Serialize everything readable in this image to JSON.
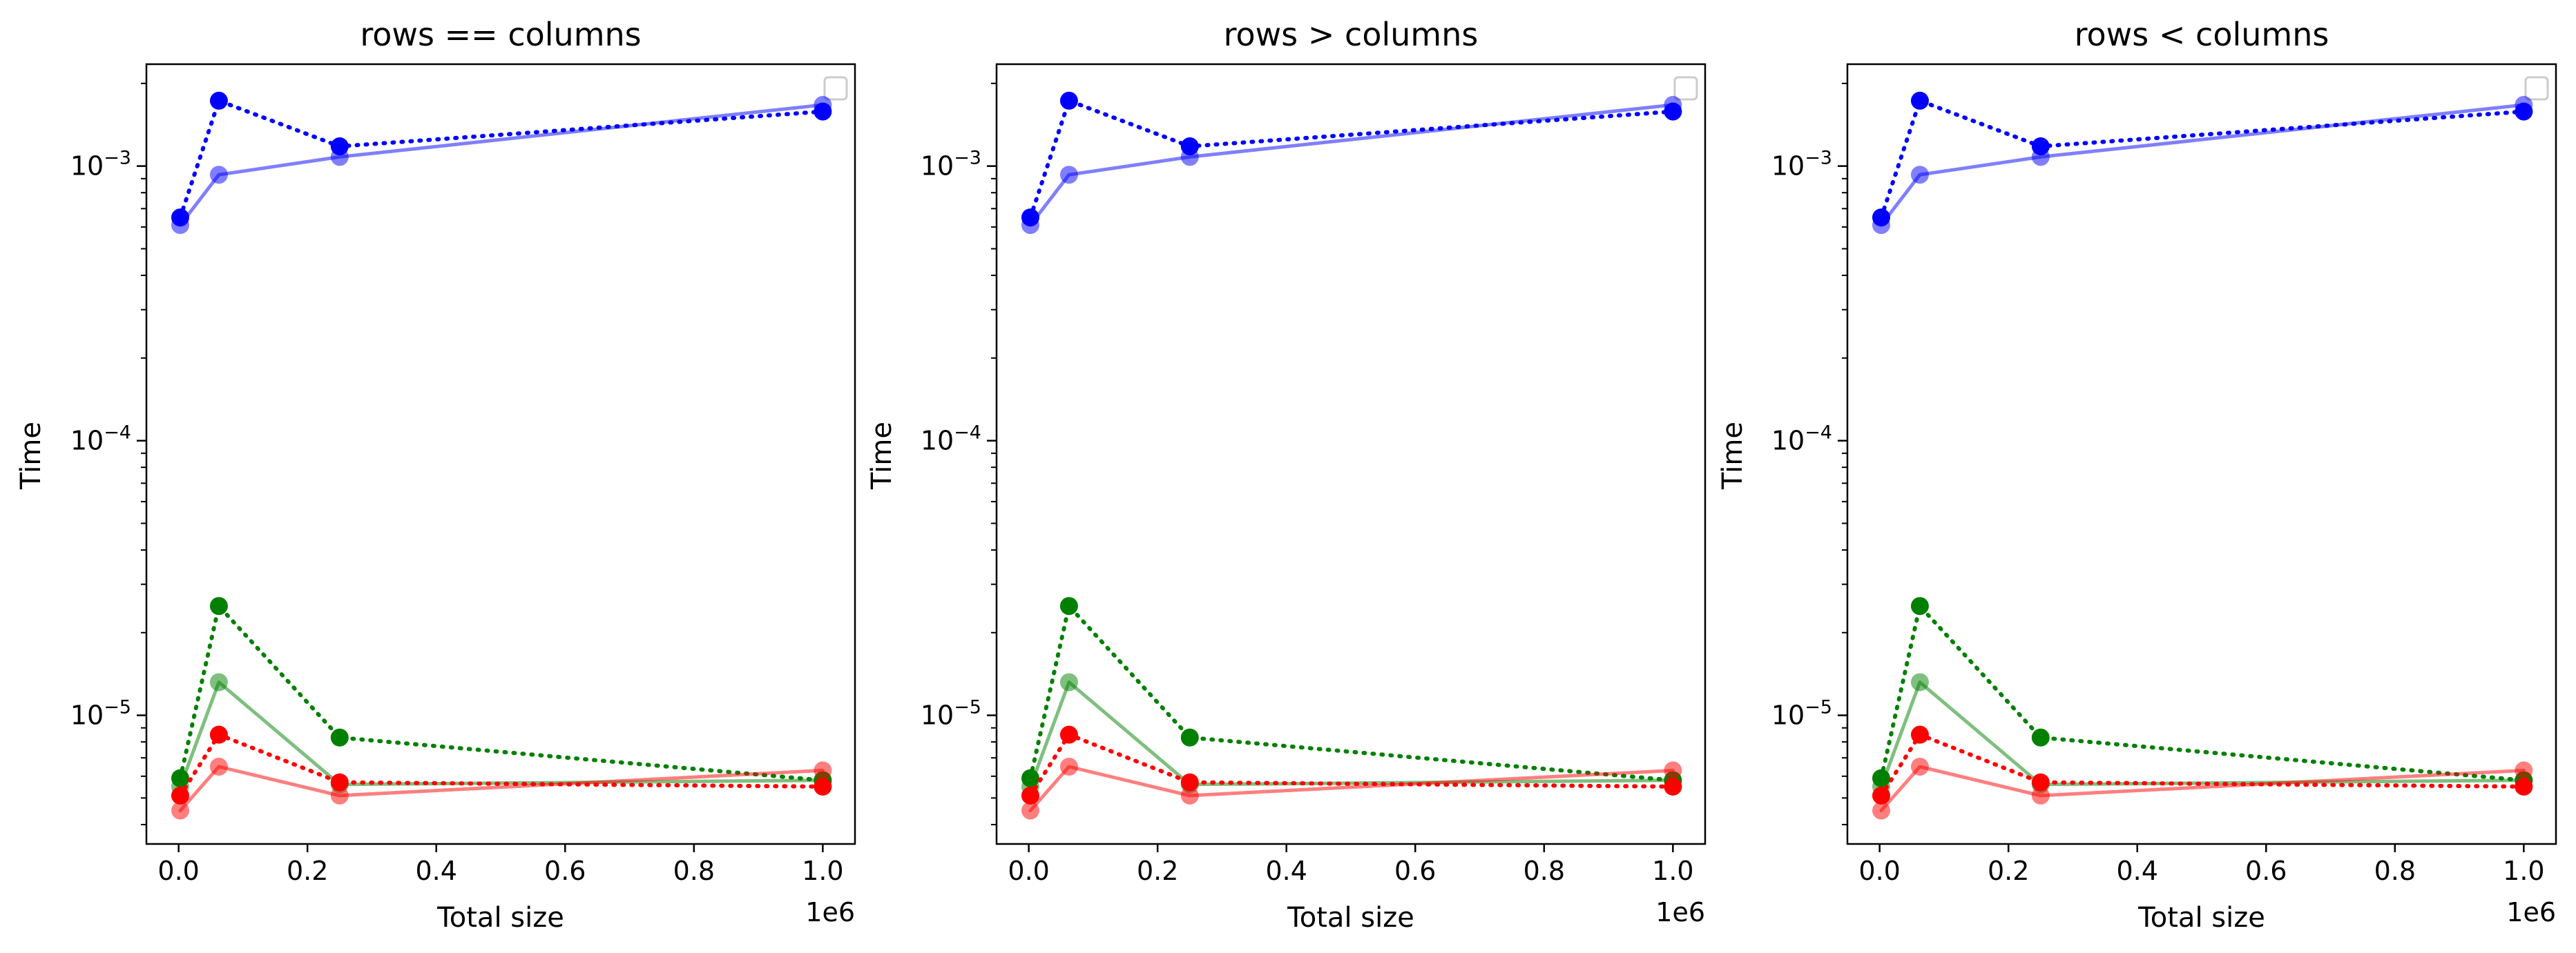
{
  "figure": {
    "subplots": [
      {
        "title": "rows == columns",
        "xlabel": "Total size",
        "ylabel": "Time",
        "x_offset_label": "1e6"
      },
      {
        "title": "rows > columns",
        "xlabel": "Total size",
        "ylabel": "Time",
        "x_offset_label": "1e6"
      },
      {
        "title": "rows < columns",
        "xlabel": "Total size",
        "ylabel": "Time",
        "x_offset_label": "1e6"
      }
    ]
  },
  "chart_data": [
    {
      "type": "line",
      "title": "rows == columns",
      "xlabel": "Total size",
      "ylabel": "Time",
      "x_offset": "1e6",
      "xlim": [
        -0.05,
        1.05
      ],
      "ylim": [
        3.4e-06,
        0.00235
      ],
      "yscale": "log",
      "x_ticks": [
        "0.0",
        "0.2",
        "0.4",
        "0.6",
        "0.8",
        "1.0"
      ],
      "y_ticks": [
        "10^-5",
        "10^-4",
        "10^-3"
      ],
      "legend": "top-right (empty)",
      "grid": false,
      "x": [
        0.0025,
        0.0625,
        0.25,
        1.0
      ],
      "series": [
        {
          "color": "#0000ff",
          "style": "solid-light",
          "values": [
            0.00061,
            0.00093,
            0.00108,
            0.00167
          ]
        },
        {
          "color": "#0000ff",
          "style": "dotted",
          "values": [
            0.00065,
            0.00173,
            0.00118,
            0.00158
          ]
        },
        {
          "color": "#008000",
          "style": "solid-light",
          "values": [
            5.5e-06,
            1.32e-05,
            5.6e-06,
            5.8e-06
          ]
        },
        {
          "color": "#008000",
          "style": "dotted",
          "values": [
            5.9e-06,
            2.5e-05,
            8.3e-06,
            5.8e-06
          ]
        },
        {
          "color": "#ff0000",
          "style": "solid-light",
          "values": [
            4.5e-06,
            6.5e-06,
            5.1e-06,
            6.3e-06
          ]
        },
        {
          "color": "#ff0000",
          "style": "dotted",
          "values": [
            5.1e-06,
            8.5e-06,
            5.7e-06,
            5.5e-06
          ]
        }
      ]
    },
    {
      "type": "line",
      "title": "rows > columns",
      "xlabel": "Total size",
      "ylabel": "Time",
      "x_offset": "1e6",
      "xlim": [
        -0.05,
        1.05
      ],
      "ylim": [
        3.4e-06,
        0.00235
      ],
      "yscale": "log",
      "x_ticks": [
        "0.0",
        "0.2",
        "0.4",
        "0.6",
        "0.8",
        "1.0"
      ],
      "y_ticks": [
        "10^-5",
        "10^-4",
        "10^-3"
      ],
      "legend": "top-right (empty)",
      "grid": false,
      "x": [
        0.0025,
        0.0625,
        0.25,
        1.0
      ],
      "series": [
        {
          "color": "#0000ff",
          "style": "solid-light",
          "values": [
            0.00061,
            0.00093,
            0.00108,
            0.00167
          ]
        },
        {
          "color": "#0000ff",
          "style": "dotted",
          "values": [
            0.00065,
            0.00173,
            0.00118,
            0.00158
          ]
        },
        {
          "color": "#008000",
          "style": "solid-light",
          "values": [
            5.5e-06,
            1.32e-05,
            5.6e-06,
            5.8e-06
          ]
        },
        {
          "color": "#008000",
          "style": "dotted",
          "values": [
            5.9e-06,
            2.5e-05,
            8.3e-06,
            5.8e-06
          ]
        },
        {
          "color": "#ff0000",
          "style": "solid-light",
          "values": [
            4.5e-06,
            6.5e-06,
            5.1e-06,
            6.3e-06
          ]
        },
        {
          "color": "#ff0000",
          "style": "dotted",
          "values": [
            5.1e-06,
            8.5e-06,
            5.7e-06,
            5.5e-06
          ]
        }
      ]
    },
    {
      "type": "line",
      "title": "rows < columns",
      "xlabel": "Total size",
      "ylabel": "Time",
      "x_offset": "1e6",
      "xlim": [
        -0.05,
        1.05
      ],
      "ylim": [
        3.4e-06,
        0.00235
      ],
      "yscale": "log",
      "x_ticks": [
        "0.0",
        "0.2",
        "0.4",
        "0.6",
        "0.8",
        "1.0"
      ],
      "y_ticks": [
        "10^-5",
        "10^-4",
        "10^-3"
      ],
      "legend": "top-right (empty)",
      "grid": false,
      "x": [
        0.0025,
        0.0625,
        0.25,
        1.0
      ],
      "series": [
        {
          "color": "#0000ff",
          "style": "solid-light",
          "values": [
            0.00061,
            0.00093,
            0.00108,
            0.00167
          ]
        },
        {
          "color": "#0000ff",
          "style": "dotted",
          "values": [
            0.00065,
            0.00173,
            0.00118,
            0.00158
          ]
        },
        {
          "color": "#008000",
          "style": "solid-light",
          "values": [
            5.5e-06,
            1.32e-05,
            5.6e-06,
            5.8e-06
          ]
        },
        {
          "color": "#008000",
          "style": "dotted",
          "values": [
            5.9e-06,
            2.5e-05,
            8.3e-06,
            5.8e-06
          ]
        },
        {
          "color": "#ff0000",
          "style": "solid-light",
          "values": [
            4.5e-06,
            6.5e-06,
            5.1e-06,
            6.3e-06
          ]
        },
        {
          "color": "#ff0000",
          "style": "dotted",
          "values": [
            5.1e-06,
            8.5e-06,
            5.7e-06,
            5.5e-06
          ]
        }
      ]
    }
  ]
}
